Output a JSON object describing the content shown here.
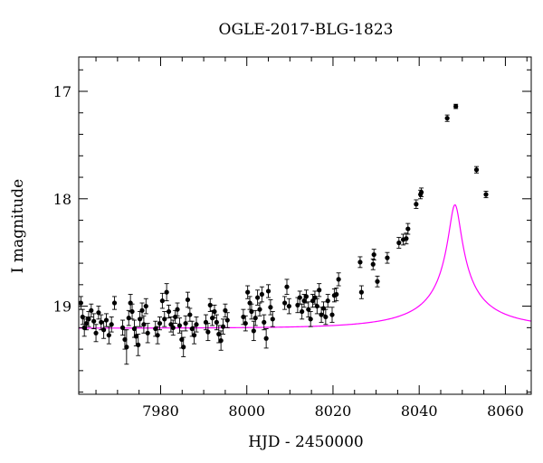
{
  "chart_data": {
    "type": "scatter",
    "title": "OGLE-2017-BLG-1823",
    "xlabel": "HJD - 2450000",
    "ylabel": "I magnitude",
    "xlim": [
      7961,
      8066
    ],
    "ylim": [
      19.82,
      16.68
    ],
    "y_inverted": true,
    "x_ticks": [
      7980,
      8000,
      8020,
      8040,
      8060
    ],
    "y_ticks": [
      17,
      18,
      19
    ],
    "x_minor_step": 5,
    "y_minor_step": 0.2,
    "grid": false,
    "colors": {
      "points": "#000000",
      "model": "#ff00ff",
      "axes": "#000000"
    },
    "series": [
      {
        "marker": "circle-with-errorbars",
        "points": [
          [
            7961.5,
            18.97,
            0.06
          ],
          [
            7961.9,
            19.1,
            0.07
          ],
          [
            7962.3,
            19.2,
            0.08
          ],
          [
            7962.8,
            19.16,
            0.06
          ],
          [
            7963.3,
            19.12,
            0.07
          ],
          [
            7963.9,
            19.04,
            0.06
          ],
          [
            7964.5,
            19.14,
            0.07
          ],
          [
            7965.0,
            19.25,
            0.08
          ],
          [
            7965.6,
            19.06,
            0.06
          ],
          [
            7966.2,
            19.15,
            0.07
          ],
          [
            7966.8,
            19.22,
            0.08
          ],
          [
            7967.4,
            19.13,
            0.06
          ],
          [
            7968.0,
            19.27,
            0.08
          ],
          [
            7968.6,
            19.17,
            0.07
          ],
          [
            7969.3,
            18.97,
            0.06
          ],
          [
            7971.2,
            19.2,
            0.07
          ],
          [
            7971.7,
            19.31,
            0.09
          ],
          [
            7972.1,
            19.38,
            0.16
          ],
          [
            7972.6,
            19.11,
            0.07
          ],
          [
            7973.0,
            18.97,
            0.08
          ],
          [
            7973.4,
            19.05,
            0.07
          ],
          [
            7973.9,
            19.21,
            0.08
          ],
          [
            7974.3,
            19.28,
            0.09
          ],
          [
            7974.8,
            19.36,
            0.1
          ],
          [
            7975.2,
            19.12,
            0.07
          ],
          [
            7975.7,
            19.04,
            0.07
          ],
          [
            7976.1,
            19.17,
            0.08
          ],
          [
            7976.6,
            19.0,
            0.07
          ],
          [
            7977.0,
            19.25,
            0.09
          ],
          [
            7978.8,
            19.21,
            0.07
          ],
          [
            7979.3,
            19.27,
            0.08
          ],
          [
            7979.8,
            19.16,
            0.06
          ],
          [
            7980.4,
            18.95,
            0.07
          ],
          [
            7980.9,
            19.12,
            0.07
          ],
          [
            7981.4,
            18.87,
            0.08
          ],
          [
            7981.9,
            19.05,
            0.06
          ],
          [
            7982.4,
            19.17,
            0.07
          ],
          [
            7982.9,
            19.2,
            0.07
          ],
          [
            7983.4,
            19.1,
            0.06
          ],
          [
            7983.9,
            19.03,
            0.06
          ],
          [
            7984.4,
            19.18,
            0.07
          ],
          [
            7984.9,
            19.31,
            0.08
          ],
          [
            7985.3,
            19.38,
            0.09
          ],
          [
            7985.8,
            19.16,
            0.07
          ],
          [
            7986.3,
            18.94,
            0.07
          ],
          [
            7986.8,
            19.08,
            0.06
          ],
          [
            7987.3,
            19.21,
            0.07
          ],
          [
            7987.8,
            19.27,
            0.08
          ],
          [
            7988.3,
            19.17,
            0.07
          ],
          [
            7990.5,
            19.15,
            0.07
          ],
          [
            7991.0,
            19.24,
            0.08
          ],
          [
            7991.5,
            18.99,
            0.06
          ],
          [
            7992.0,
            19.11,
            0.07
          ],
          [
            7992.5,
            19.05,
            0.06
          ],
          [
            7993.0,
            19.15,
            0.07
          ],
          [
            7993.5,
            19.26,
            0.08
          ],
          [
            7994.0,
            19.32,
            0.09
          ],
          [
            7994.5,
            19.19,
            0.07
          ],
          [
            7995.0,
            19.04,
            0.06
          ],
          [
            7995.5,
            19.13,
            0.07
          ],
          [
            7999.2,
            19.1,
            0.07
          ],
          [
            7999.7,
            19.16,
            0.07
          ],
          [
            8000.2,
            18.87,
            0.06
          ],
          [
            8000.7,
            18.97,
            0.06
          ],
          [
            8001.1,
            19.05,
            0.07
          ],
          [
            8001.6,
            19.23,
            0.09
          ],
          [
            8002.0,
            19.11,
            0.07
          ],
          [
            8002.5,
            18.92,
            0.07
          ],
          [
            8003.0,
            19.03,
            0.06
          ],
          [
            8003.5,
            18.89,
            0.07
          ],
          [
            8004.0,
            19.15,
            0.07
          ],
          [
            8004.5,
            19.3,
            0.09
          ],
          [
            8005.0,
            18.86,
            0.06
          ],
          [
            8005.5,
            19.01,
            0.07
          ],
          [
            8006.0,
            19.12,
            0.07
          ],
          [
            8008.8,
            18.97,
            0.06
          ],
          [
            8009.3,
            18.82,
            0.07
          ],
          [
            8009.8,
            19.0,
            0.07
          ],
          [
            8011.8,
            18.99,
            0.07
          ],
          [
            8012.3,
            18.92,
            0.06
          ],
          [
            8012.8,
            19.05,
            0.07
          ],
          [
            8013.3,
            18.95,
            0.06
          ],
          [
            8013.8,
            18.91,
            0.06
          ],
          [
            8014.3,
            19.03,
            0.07
          ],
          [
            8014.8,
            19.12,
            0.07
          ],
          [
            8015.3,
            18.95,
            0.06
          ],
          [
            8015.8,
            18.92,
            0.06
          ],
          [
            8016.3,
            19.0,
            0.07
          ],
          [
            8016.8,
            18.85,
            0.06
          ],
          [
            8017.3,
            19.08,
            0.07
          ],
          [
            8017.8,
            19.02,
            0.06
          ],
          [
            8018.3,
            19.1,
            0.07
          ],
          [
            8018.8,
            18.95,
            0.06
          ],
          [
            8019.8,
            19.08,
            0.07
          ],
          [
            8020.3,
            18.9,
            0.06
          ],
          [
            8020.8,
            18.89,
            0.06
          ],
          [
            8021.3,
            18.75,
            0.06
          ],
          [
            8026.3,
            18.59,
            0.05
          ],
          [
            8026.6,
            18.87,
            0.06
          ],
          [
            8029.3,
            18.61,
            0.05
          ],
          [
            8029.5,
            18.52,
            0.05
          ],
          [
            8030.3,
            18.77,
            0.05
          ],
          [
            8032.6,
            18.55,
            0.05
          ],
          [
            8035.3,
            18.41,
            0.05
          ],
          [
            8036.3,
            18.38,
            0.05
          ],
          [
            8037.0,
            18.37,
            0.05
          ],
          [
            8037.4,
            18.28,
            0.05
          ],
          [
            8039.3,
            18.05,
            0.04
          ],
          [
            8040.3,
            17.96,
            0.04
          ],
          [
            8040.5,
            17.94,
            0.04
          ],
          [
            8046.5,
            17.25,
            0.03
          ],
          [
            8048.5,
            17.14,
            0.02
          ],
          [
            8053.3,
            17.73,
            0.03
          ],
          [
            8055.5,
            17.96,
            0.03
          ]
        ]
      }
    ],
    "model": {
      "type": "point-lens-light-curve",
      "t0": 8048.3,
      "tE": 22.0,
      "u0": 0.06,
      "fs": 0.12,
      "mbase": 19.205
    }
  }
}
